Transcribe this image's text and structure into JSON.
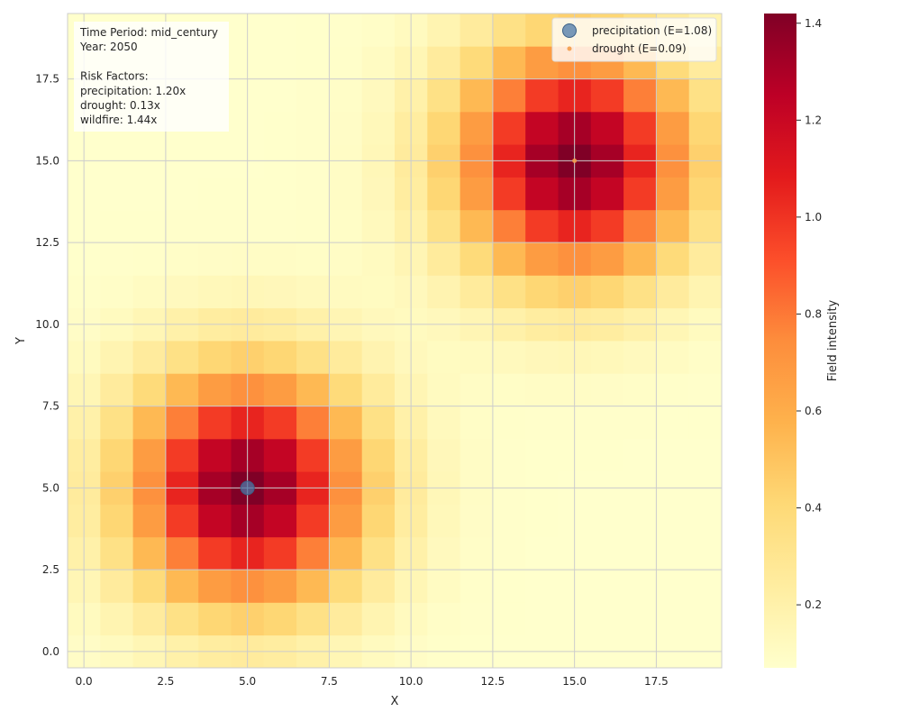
{
  "chart_data": {
    "type": "heatmap",
    "xlabel": "X",
    "ylabel": "Y",
    "xlim": [
      -0.5,
      19.5
    ],
    "ylim": [
      -0.5,
      19.5
    ],
    "x_ticks": [
      "0.0",
      "2.5",
      "5.0",
      "7.5",
      "10.0",
      "12.5",
      "15.0",
      "17.5"
    ],
    "y_ticks": [
      "0.0",
      "2.5",
      "5.0",
      "7.5",
      "10.0",
      "12.5",
      "15.0",
      "17.5"
    ],
    "grid": true,
    "colormap": "YlOrRd",
    "colorbar": {
      "label": "Field intensity",
      "vmin": 0.07,
      "vmax": 1.42,
      "ticks": [
        "0.2",
        "0.4",
        "0.6",
        "0.8",
        "1.0",
        "1.2",
        "1.4"
      ]
    },
    "grid_size": [
      20,
      20
    ],
    "field_model": {
      "background": 0.07,
      "sources": [
        {
          "x": 5,
          "y": 5,
          "amplitude": 1.35,
          "sigma": 2.5
        },
        {
          "x": 15,
          "y": 15,
          "amplitude": 1.35,
          "sigma": 2.5
        }
      ]
    },
    "series": [
      {
        "name": "precipitation (E=1.08)",
        "x": 5,
        "y": 5,
        "color": "#4c78a8",
        "marker": "large-circle"
      },
      {
        "name": "drought (E=0.09)",
        "x": 15,
        "y": 15,
        "color": "#f39c4a",
        "marker": "small-circle"
      }
    ],
    "legend_position": "top-right",
    "annotation": [
      "Time Period: mid_century",
      "Year: 2050",
      "",
      "Risk Factors:",
      "precipitation: 1.20x",
      "drought: 0.13x",
      "wildfire: 1.44x"
    ]
  }
}
